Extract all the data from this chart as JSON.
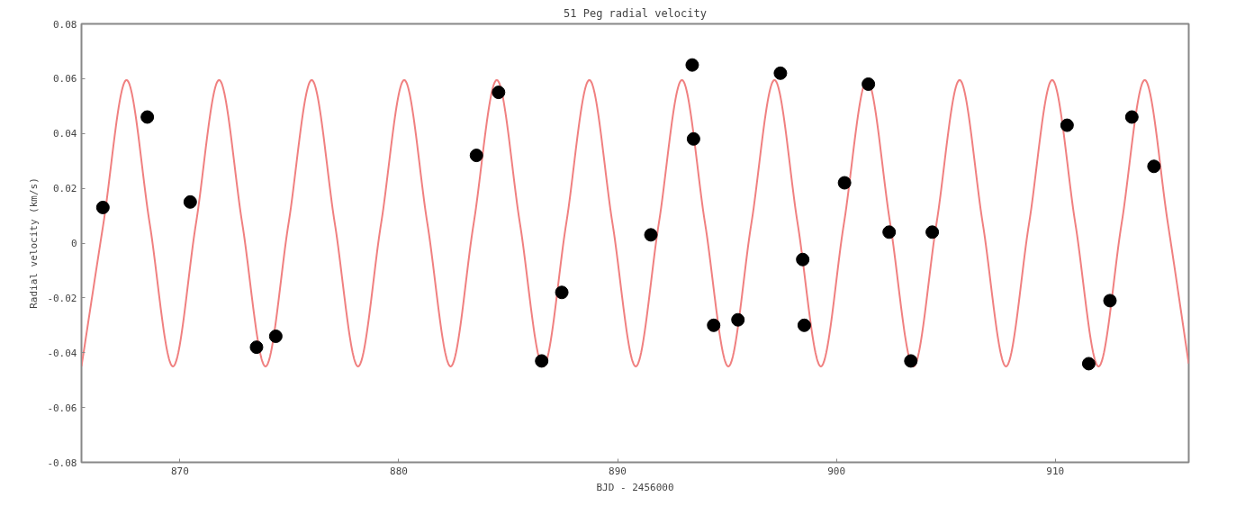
{
  "chart_data": {
    "type": "scatter",
    "title": "51 Peg radial velocity",
    "xlabel": "BJD - 2456000",
    "ylabel": "Radial velocity (km/s)",
    "xlim": [
      865.5,
      916.1
    ],
    "xticks": [
      870,
      880,
      890,
      900,
      910
    ],
    "ylim": [
      -0.08,
      0.08
    ],
    "yticks": [
      -0.08,
      -0.06,
      -0.04,
      -0.02,
      0,
      0.02,
      0.04,
      0.06,
      0.08
    ],
    "grid": false,
    "series": [
      {
        "type": "line",
        "color": "#f08080",
        "line_style": "solid",
        "x": [
          865.5,
          866.5,
          867.56,
          868.62,
          869.68,
          870.73,
          871.79,
          872.85,
          873.91,
          874.96,
          876.02,
          877.08,
          878.14,
          879.19,
          880.25,
          881.31,
          882.37,
          883.42,
          884.48,
          885.54,
          886.6,
          887.65,
          888.71,
          889.77,
          890.83,
          891.88,
          892.94,
          894.0,
          895.06,
          896.11,
          897.17,
          898.23,
          899.29,
          900.34,
          901.4,
          902.46,
          903.52,
          904.57,
          905.63,
          906.69,
          907.75,
          908.8,
          909.86,
          910.92,
          911.98,
          913.03,
          914.09,
          915.15,
          916.1
        ],
        "values": [
          -0.045,
          0.007,
          0.0595,
          0.007,
          -0.045,
          0.007,
          0.0595,
          0.007,
          -0.045,
          0.007,
          0.0595,
          0.007,
          -0.045,
          0.007,
          0.0595,
          0.007,
          -0.045,
          0.007,
          0.0595,
          0.007,
          -0.045,
          0.007,
          0.0595,
          0.007,
          -0.045,
          0.007,
          0.0595,
          0.007,
          -0.045,
          0.007,
          0.0595,
          0.007,
          -0.045,
          0.007,
          0.0595,
          0.007,
          -0.045,
          0.007,
          0.0595,
          0.007,
          -0.045,
          0.007,
          0.0595,
          0.007,
          -0.045,
          0.007,
          0.0595,
          0.007,
          -0.044
        ]
      },
      {
        "marker": "circle",
        "color": "#000000",
        "x": [
          866.48,
          868.51,
          870.47,
          873.5,
          874.38,
          883.55,
          884.56,
          886.53,
          887.45,
          891.52,
          893.41,
          893.47,
          894.39,
          895.5,
          897.44,
          898.46,
          898.53,
          900.37,
          901.46,
          902.41,
          903.4,
          904.38,
          910.54,
          911.53,
          912.5,
          913.5,
          914.51
        ],
        "values": [
          0.013,
          0.046,
          0.015,
          -0.038,
          -0.034,
          0.032,
          0.055,
          -0.043,
          -0.018,
          0.003,
          0.065,
          0.038,
          -0.03,
          -0.028,
          0.062,
          -0.006,
          -0.03,
          0.022,
          0.058,
          0.004,
          -0.043,
          0.004,
          0.043,
          -0.044,
          -0.021,
          0.046,
          0.028
        ]
      }
    ]
  }
}
